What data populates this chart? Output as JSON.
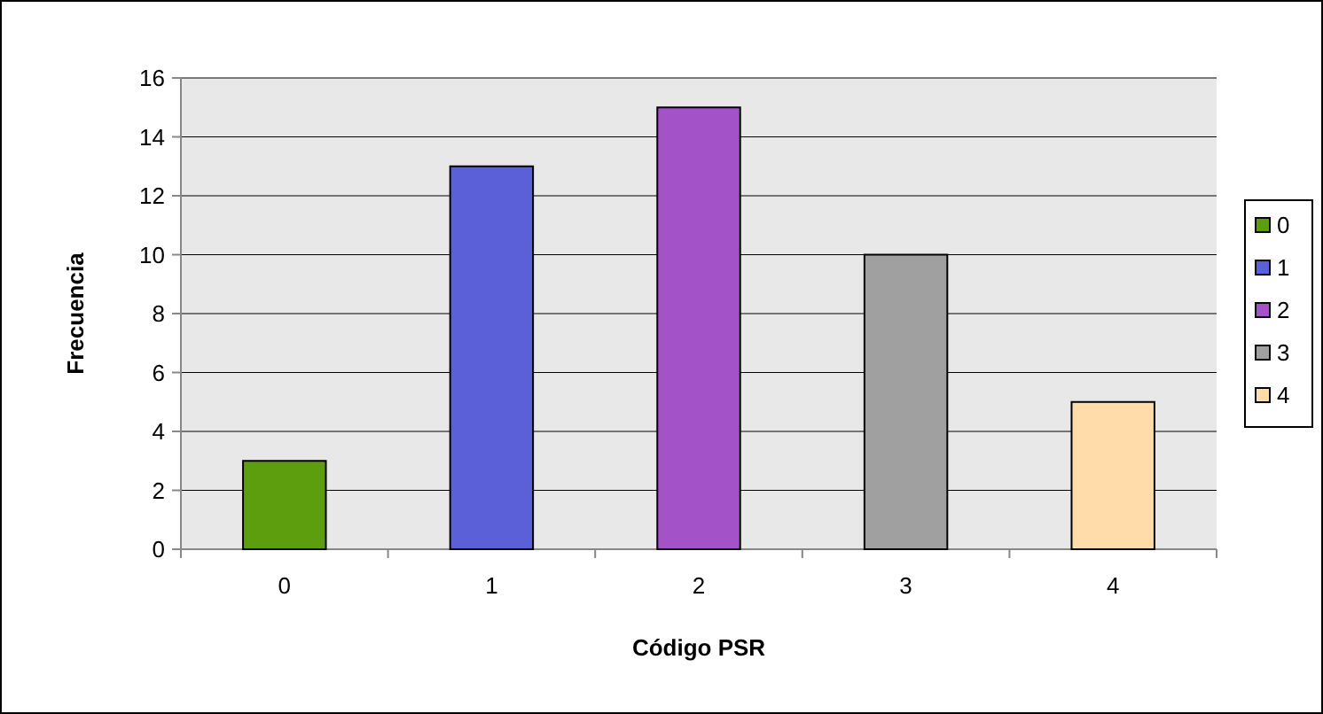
{
  "chart_data": {
    "type": "bar",
    "xlabel": "Código PSR",
    "ylabel": "Frecuencia",
    "stacked": true,
    "categories": [
      "0",
      "1",
      "2",
      "3",
      "4"
    ],
    "series": [
      {
        "name": "0",
        "color": "#5c9e0e",
        "values": [
          3,
          null,
          null,
          null,
          null
        ]
      },
      {
        "name": "1",
        "color": "#5c60d8",
        "values": [
          null,
          13,
          null,
          null,
          null
        ]
      },
      {
        "name": "2",
        "color": "#a452c8",
        "values": [
          null,
          null,
          15,
          null,
          null
        ]
      },
      {
        "name": "3",
        "color": "#a0a0a0",
        "values": [
          null,
          null,
          null,
          10,
          null
        ]
      },
      {
        "name": "4",
        "color": "#ffdcaa",
        "values": [
          null,
          null,
          null,
          null,
          5
        ]
      }
    ],
    "ylim": [
      0,
      16
    ],
    "yticks": [
      0,
      2,
      4,
      6,
      8,
      10,
      12,
      14,
      16
    ],
    "grid": "y",
    "legend": "right"
  }
}
